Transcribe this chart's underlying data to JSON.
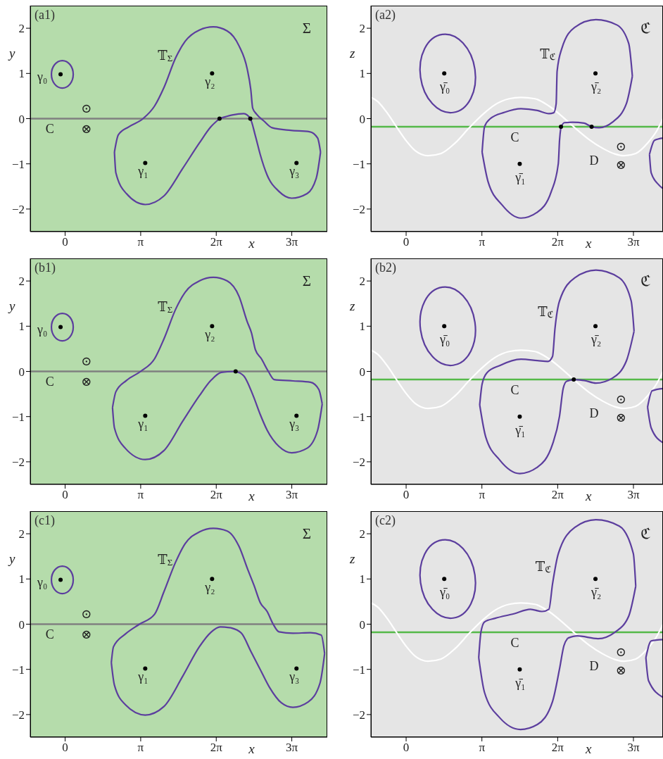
{
  "chart_data": [
    {
      "type": "line",
      "title": "(a1)",
      "xlabel": "x",
      "ylabel": "y",
      "xlim": [
        -1.45,
        10.9
      ],
      "ylim": [
        -2.5,
        2.5
      ],
      "xticks": [
        {
          "value": 0,
          "label": "0"
        },
        {
          "value": 3.1416,
          "label": "π"
        },
        {
          "value": 6.2832,
          "label": "2π"
        },
        {
          "value": 9.4248,
          "label": "3π"
        }
      ],
      "yticks": [
        -2,
        -1,
        0,
        1,
        2
      ],
      "grid": false,
      "marker": "none",
      "series": [
        {
          "color": "#5c3e9e",
          "x": [
            6.42,
            6.94,
            7.43,
            7.7,
            7.91,
            8.11,
            8.4,
            8.89,
            9.42,
            10.06,
            10.45,
            10.62
          ],
          "values": [
            0.0,
            0.08,
            0.11,
            0.0,
            -0.38,
            -0.79,
            -1.25,
            -1.61,
            -1.76,
            -1.66,
            -1.3,
            -0.74
          ]
        },
        {
          "color": "#5c3e9e",
          "x": [
            2.05,
            2.21,
            2.65,
            3.24,
            3.72,
            4.11,
            4.6,
            4.99,
            5.58,
            6.16,
            6.74,
            7.23,
            7.57,
            7.72,
            7.8,
            7.96,
            8.26,
            8.6,
            9.38,
            10.16,
            10.5,
            10.62
          ],
          "values": [
            -0.74,
            -0.36,
            -0.18,
            0.0,
            0.28,
            0.69,
            1.35,
            1.71,
            1.96,
            2.03,
            1.94,
            1.61,
            1.1,
            0.64,
            0.23,
            0.1,
            -0.05,
            -0.2,
            -0.26,
            -0.29,
            -0.43,
            -0.74
          ]
        },
        {
          "color": "#5c3e9e",
          "x": [
            2.05,
            2.11,
            2.55,
            3.33,
            4.11,
            4.89,
            5.58,
            6.06,
            6.42
          ],
          "values": [
            -0.74,
            -1.2,
            -1.66,
            -1.9,
            -1.71,
            -1.1,
            -0.54,
            -0.18,
            0.0
          ]
        },
        {
          "type": "scatter",
          "marker": "circle",
          "color": "#000000",
          "x": [
            -0.19,
            3.33,
            6.11,
            9.62
          ],
          "values": [
            0.98,
            -0.98,
            1.0,
            -0.98
          ]
        },
        {
          "type": "scatter",
          "marker": "circle",
          "color": "#000000",
          "x": [
            6.42,
            7.7
          ],
          "values": [
            0.0,
            0.0
          ]
        }
      ],
      "ref_lines": [
        {
          "axis": "y",
          "value": 0,
          "color": "#808080"
        }
      ],
      "annotations": [
        "Σ",
        "⊙",
        "⊗",
        {
          "text": "𝕋$_{Σ}$",
          "x": 4.6,
          "y": 1.35
        },
        {
          "text": "γ₀",
          "x": -0.19,
          "y": 0.98
        },
        {
          "text": "γ₁",
          "x": 3.33,
          "y": -0.98
        },
        {
          "text": "γ₂",
          "x": 6.11,
          "y": 1.0
        },
        {
          "text": "γ₃",
          "x": 9.62,
          "y": -0.98
        },
        {
          "text": "C",
          "x": -0.64,
          "y": 0
        }
      ]
    },
    {
      "type": "line",
      "title": "(a2)",
      "xlabel": "x",
      "ylabel": "z",
      "xlim": [
        -1.46,
        10.65
      ],
      "ylim": [
        -2.5,
        2.5
      ],
      "xticks": [
        {
          "value": 0,
          "label": "0"
        },
        {
          "value": 3.1416,
          "label": "π"
        },
        {
          "value": 6.2832,
          "label": "2π"
        },
        {
          "value": 9.4248,
          "label": "3π"
        }
      ],
      "yticks": [
        -2,
        -1,
        0,
        1,
        2
      ],
      "grid": false,
      "marker": "none",
      "series": [
        {
          "color": "#ffffff",
          "x": [
            -1.46,
            -1.18,
            -0.79,
            -0.4,
            -0.01,
            0.38,
            0.91,
            1.45,
            2.03,
            2.62,
            3.19,
            3.69,
            4.27,
            4.76,
            5.34,
            5.92,
            6.51,
            6.99,
            7.58,
            8.16,
            8.65,
            9.04,
            9.52,
            10.01,
            10.4,
            10.65
          ],
          "values": [
            0.47,
            0.38,
            0.13,
            -0.18,
            -0.48,
            -0.71,
            -0.82,
            -0.77,
            -0.54,
            -0.2,
            0.1,
            0.31,
            0.44,
            0.47,
            0.44,
            0.28,
            0.03,
            -0.2,
            -0.46,
            -0.66,
            -0.78,
            -0.82,
            -0.77,
            -0.54,
            -0.26,
            0.0
          ]
        },
        {
          "color": "#5c3e9e",
          "x": [
            6.42,
            6.56,
            6.9,
            7.38,
            7.69,
            8.0,
            8.55,
            9.13,
            9.38
          ],
          "values": [
            -0.18,
            -0.09,
            -0.08,
            -0.1,
            -0.18,
            -0.2,
            -0.08,
            0.33,
            0.94
          ]
        },
        {
          "color": "#5c3e9e",
          "x": [
            3.15,
            3.25,
            3.49,
            4.08,
            4.76,
            5.44,
            5.92,
            6.12,
            6.22,
            6.26,
            6.46,
            6.99,
            7.87,
            8.75,
            9.23,
            9.38
          ],
          "values": [
            -0.74,
            -0.18,
            0.0,
            0.14,
            0.22,
            0.18,
            0.11,
            0.13,
            0.33,
            1.05,
            1.56,
            2.02,
            2.19,
            2.07,
            1.66,
            0.94
          ]
        },
        {
          "color": "#5c3e9e",
          "x": [
            3.15,
            3.4,
            3.98,
            4.76,
            5.44,
            6.02,
            6.31,
            6.36,
            6.42
          ],
          "values": [
            -0.74,
            -1.4,
            -1.91,
            -2.2,
            -2.07,
            -1.61,
            -0.99,
            -0.48,
            -0.18
          ]
        },
        {
          "color": "#5c3e9e",
          "x": [
            10.09,
            10.3,
            10.65
          ],
          "values": [
            -0.79,
            -0.48,
            -0.43
          ]
        },
        {
          "color": "#5c3e9e",
          "x": [
            10.09,
            10.16,
            10.45,
            10.65
          ],
          "values": [
            -0.79,
            -1.2,
            -1.45,
            -1.55
          ]
        },
        {
          "type": "scatter",
          "marker": "circle",
          "color": "#000000",
          "x": [
            1.58,
            4.71,
            7.85
          ],
          "values": [
            1.0,
            -1.0,
            1.0
          ]
        },
        {
          "type": "scatter",
          "marker": "circle",
          "color": "#000000",
          "x": [
            6.42,
            7.69
          ],
          "values": [
            -0.18,
            -0.18
          ]
        }
      ],
      "ref_lines": [
        {
          "axis": "y",
          "value": -0.18,
          "color": "#55b949"
        }
      ],
      "annotations": [
        "ℭ",
        "D",
        "⊙",
        "⊗",
        {
          "text": "𝕋$_{ℭ}$",
          "x": 6.26,
          "y": 1.05
        },
        {
          "text": "γ̄₀",
          "x": 1.58,
          "y": 1.0
        },
        {
          "text": "γ̄₁",
          "x": 4.71,
          "y": -1.0
        },
        {
          "text": "γ̄₂",
          "x": 7.85,
          "y": 1.0
        },
        {
          "text": "C",
          "x": 4.51,
          "y": -0.18
        }
      ]
    },
    {
      "type": "line",
      "title": "(b1)",
      "xlabel": "x",
      "ylabel": "y",
      "xlim": [
        -1.45,
        10.9
      ],
      "ylim": [
        -2.5,
        2.5
      ],
      "xticks": [
        {
          "value": 0,
          "label": "0"
        },
        {
          "value": 3.1416,
          "label": "π"
        },
        {
          "value": 6.2832,
          "label": "2π"
        },
        {
          "value": 9.4248,
          "label": "3π"
        }
      ],
      "yticks": [
        -2,
        -1,
        0,
        1,
        2
      ],
      "grid": false,
      "marker": "none",
      "series": [
        {
          "color": "#5c3e9e",
          "x": [
            7.09,
            7.43,
            7.82,
            8.11,
            8.4,
            8.89,
            9.42,
            10.06,
            10.5,
            10.69
          ],
          "values": [
            0.0,
            -0.1,
            -0.54,
            -0.95,
            -1.3,
            -1.66,
            -1.8,
            -1.7,
            -1.3,
            -0.72
          ]
        },
        {
          "color": "#5c3e9e",
          "x": [
            1.97,
            2.11,
            2.55,
            3.14,
            3.72,
            4.11,
            4.6,
            4.99,
            5.58,
            6.16,
            6.74,
            7.23,
            7.57,
            7.75,
            7.91,
            8.16,
            8.45,
            8.69,
            9.47,
            10.2,
            10.55,
            10.69
          ],
          "values": [
            -0.8,
            -0.45,
            -0.2,
            0.0,
            0.28,
            0.72,
            1.38,
            1.75,
            2.0,
            2.08,
            2.0,
            1.66,
            1.1,
            0.85,
            0.48,
            0.28,
            0.0,
            -0.18,
            -0.21,
            -0.24,
            -0.4,
            -0.72
          ]
        },
        {
          "color": "#5c3e9e",
          "x": [
            1.97,
            2.05,
            2.5,
            3.33,
            4.11,
            4.89,
            5.58,
            6.06,
            6.5,
            7.09
          ],
          "values": [
            -0.8,
            -1.25,
            -1.7,
            -1.95,
            -1.75,
            -1.1,
            -0.54,
            -0.2,
            -0.02,
            0.0
          ]
        },
        {
          "type": "scatter",
          "marker": "circle",
          "color": "#000000",
          "x": [
            -0.19,
            3.33,
            6.11,
            9.62
          ],
          "values": [
            0.98,
            -0.98,
            1.0,
            -0.98
          ]
        },
        {
          "type": "scatter",
          "marker": "circle",
          "color": "#000000",
          "x": [
            7.09
          ],
          "values": [
            0.0
          ]
        }
      ],
      "ref_lines": [
        {
          "axis": "y",
          "value": 0,
          "color": "#808080"
        }
      ],
      "annotations": [
        "Σ",
        "⊙",
        "⊗",
        {
          "text": "𝕋$_{Σ}$",
          "x": 4.6,
          "y": 1.38
        },
        {
          "text": "γ₀",
          "x": -0.19,
          "y": 0.98
        },
        {
          "text": "γ₁",
          "x": 3.33,
          "y": -0.98
        },
        {
          "text": "γ₂",
          "x": 6.11,
          "y": 1.0
        },
        {
          "text": "γ₃",
          "x": 9.62,
          "y": -0.98
        },
        {
          "text": "C",
          "x": -0.64,
          "y": 0
        }
      ]
    },
    {
      "type": "line",
      "title": "(b2)",
      "xlabel": "x",
      "ylabel": "z",
      "xlim": [
        -1.46,
        10.65
      ],
      "ylim": [
        -2.5,
        2.5
      ],
      "xticks": [
        {
          "value": 0,
          "label": "0"
        },
        {
          "value": 3.1416,
          "label": "π"
        },
        {
          "value": 6.2832,
          "label": "2π"
        },
        {
          "value": 9.4248,
          "label": "3π"
        }
      ],
      "yticks": [
        -2,
        -1,
        0,
        1,
        2
      ],
      "grid": false,
      "marker": "none",
      "series": [
        {
          "color": "#ffffff",
          "x": [
            -1.46,
            -1.18,
            -0.79,
            -0.4,
            -0.01,
            0.38,
            0.91,
            1.45,
            2.03,
            2.62,
            3.19,
            3.69,
            4.27,
            4.76,
            5.34,
            5.92,
            6.51,
            6.99,
            7.58,
            8.16,
            8.65,
            9.04,
            9.52,
            10.01,
            10.4,
            10.65
          ],
          "values": [
            0.47,
            0.38,
            0.13,
            -0.18,
            -0.48,
            -0.71,
            -0.82,
            -0.77,
            -0.54,
            -0.2,
            0.1,
            0.31,
            0.44,
            0.47,
            0.44,
            0.28,
            0.03,
            -0.2,
            -0.46,
            -0.66,
            -0.78,
            -0.82,
            -0.77,
            -0.54,
            -0.26,
            0.0
          ]
        },
        {
          "color": "#5c3e9e",
          "x": [
            6.95,
            7.38,
            7.87,
            8.55,
            9.13,
            9.45
          ],
          "values": [
            -0.18,
            -0.2,
            -0.26,
            -0.15,
            0.23,
            0.89
          ]
        },
        {
          "color": "#5c3e9e",
          "x": [
            3.05,
            3.15,
            3.35,
            3.88,
            4.76,
            5.44,
            5.88,
            6.07,
            6.17,
            6.36,
            6.99,
            7.87,
            8.84,
            9.33,
            9.45
          ],
          "values": [
            -0.74,
            -0.28,
            -0.03,
            0.13,
            0.27,
            0.24,
            0.22,
            0.33,
            0.94,
            1.56,
            2.07,
            2.24,
            2.07,
            1.56,
            0.89
          ]
        },
        {
          "color": "#5c3e9e",
          "x": [
            3.05,
            3.3,
            3.88,
            4.71,
            5.44,
            6.07,
            6.36,
            6.51,
            6.65,
            6.95
          ],
          "values": [
            -0.74,
            -1.45,
            -1.96,
            -2.26,
            -2.12,
            -1.61,
            -0.99,
            -0.38,
            -0.22,
            -0.18
          ]
        },
        {
          "color": "#5c3e9e",
          "x": [
            10.01,
            10.2,
            10.65
          ],
          "values": [
            -0.79,
            -0.43,
            -0.38
          ]
        },
        {
          "color": "#5c3e9e",
          "x": [
            10.01,
            10.16,
            10.65
          ],
          "values": [
            -0.79,
            -1.25,
            -1.58
          ]
        },
        {
          "type": "scatter",
          "marker": "circle",
          "color": "#000000",
          "x": [
            1.58,
            4.71,
            7.85
          ],
          "values": [
            1.0,
            -1.0,
            1.0
          ]
        },
        {
          "type": "scatter",
          "marker": "circle",
          "color": "#000000",
          "x": [
            6.95
          ],
          "values": [
            -0.18
          ]
        }
      ],
      "ref_lines": [
        {
          "axis": "y",
          "value": -0.18,
          "color": "#55b949"
        }
      ],
      "annotations": [
        "ℭ",
        "D",
        "⊙",
        "⊗",
        {
          "text": "𝕋$_{ℭ}$",
          "x": 6.17,
          "y": 0.94
        },
        {
          "text": "γ̄₀",
          "x": 1.58,
          "y": 1.0
        },
        {
          "text": "γ̄₁",
          "x": 4.71,
          "y": -1.0
        },
        {
          "text": "γ̄₂",
          "x": 7.85,
          "y": 1.0
        },
        {
          "text": "C",
          "x": 4.51,
          "y": -0.18
        }
      ]
    },
    {
      "type": "line",
      "title": "(c1)",
      "xlabel": "x",
      "ylabel": "y",
      "xlim": [
        -1.45,
        10.9
      ],
      "ylim": [
        -2.5,
        2.5
      ],
      "xticks": [
        {
          "value": 0,
          "label": "0"
        },
        {
          "value": 3.1416,
          "label": "π"
        },
        {
          "value": 6.2832,
          "label": "2π"
        },
        {
          "value": 9.4248,
          "label": "3π"
        }
      ],
      "yticks": [
        -2,
        -1,
        0,
        1,
        2
      ],
      "grid": false,
      "marker": "none",
      "series": [
        {
          "color": "#5c3e9e",
          "x": [
            6.89,
            7.33,
            7.72,
            8.11,
            8.5,
            8.99,
            9.47,
            10.11,
            10.6,
            10.79
          ],
          "values": [
            -0.08,
            -0.2,
            -0.6,
            -1.0,
            -1.4,
            -1.74,
            -1.84,
            -1.72,
            -1.3,
            -0.65
          ]
        },
        {
          "color": "#5c3e9e",
          "x": [
            1.92,
            2.01,
            2.5,
            3.09,
            3.72,
            4.11,
            4.6,
            4.99,
            5.58,
            6.16,
            6.74,
            7.23,
            7.6,
            7.86,
            8.11,
            8.4,
            8.65,
            8.89,
            9.47,
            10.2,
            10.65,
            10.79
          ],
          "values": [
            -0.85,
            -0.5,
            -0.22,
            0.0,
            0.22,
            0.72,
            1.38,
            1.78,
            2.04,
            2.12,
            2.06,
            1.72,
            1.2,
            0.85,
            0.48,
            0.28,
            0.0,
            -0.17,
            -0.2,
            -0.19,
            -0.24,
            -0.65
          ]
        },
        {
          "color": "#5c3e9e",
          "x": [
            1.92,
            2.05,
            2.5,
            3.33,
            4.11,
            4.89,
            5.58,
            6.06,
            6.45,
            6.89
          ],
          "values": [
            -0.85,
            -1.35,
            -1.78,
            -2.01,
            -1.82,
            -1.15,
            -0.5,
            -0.18,
            -0.06,
            -0.08
          ]
        },
        {
          "type": "scatter",
          "marker": "circle",
          "color": "#000000",
          "x": [
            -0.19,
            3.33,
            6.11,
            9.62
          ],
          "values": [
            0.98,
            -0.98,
            1.0,
            -0.98
          ]
        }
      ],
      "ref_lines": [
        {
          "axis": "y",
          "value": 0,
          "color": "#808080"
        }
      ],
      "annotations": [
        "Σ",
        "⊙",
        "⊗",
        {
          "text": "𝕋$_{Σ}$",
          "x": 4.6,
          "y": 1.38
        },
        {
          "text": "γ₀",
          "x": -0.19,
          "y": 0.98
        },
        {
          "text": "γ₁",
          "x": 3.33,
          "y": -0.98
        },
        {
          "text": "γ₂",
          "x": 6.11,
          "y": 1.0
        },
        {
          "text": "γ₃",
          "x": 9.62,
          "y": -0.98
        },
        {
          "text": "C",
          "x": -0.64,
          "y": 0
        }
      ]
    },
    {
      "type": "line",
      "title": "(c2)",
      "xlabel": "x",
      "ylabel": "z",
      "xlim": [
        -1.46,
        10.65
      ],
      "ylim": [
        -2.5,
        2.5
      ],
      "xticks": [
        {
          "value": 0,
          "label": "0"
        },
        {
          "value": 3.1416,
          "label": "π"
        },
        {
          "value": 6.2832,
          "label": "2π"
        },
        {
          "value": 9.4248,
          "label": "3π"
        }
      ],
      "yticks": [
        -2,
        -1,
        0,
        1,
        2
      ],
      "grid": false,
      "marker": "none",
      "series": [
        {
          "color": "#ffffff",
          "x": [
            -1.46,
            -1.18,
            -0.79,
            -0.4,
            -0.01,
            0.38,
            0.91,
            1.45,
            2.03,
            2.62,
            3.19,
            3.69,
            4.27,
            4.76,
            5.34,
            5.92,
            6.51,
            6.99,
            7.58,
            8.16,
            8.65,
            9.04,
            9.52,
            10.01,
            10.4,
            10.65
          ],
          "values": [
            0.47,
            0.38,
            0.13,
            -0.18,
            -0.48,
            -0.71,
            -0.82,
            -0.77,
            -0.54,
            -0.2,
            0.1,
            0.31,
            0.44,
            0.47,
            0.44,
            0.28,
            0.03,
            -0.2,
            -0.46,
            -0.66,
            -0.78,
            -0.82,
            -0.77,
            -0.54,
            -0.26,
            0.0
          ]
        },
        {
          "color": "#5c3e9e",
          "x": [
            6.7,
            7.09,
            7.96,
            8.65,
            9.23,
            9.52
          ],
          "values": [
            -0.31,
            -0.26,
            -0.32,
            -0.18,
            0.18,
            0.84
          ]
        },
        {
          "color": "#5c3e9e",
          "x": [
            3.01,
            3.1,
            3.25,
            3.69,
            4.47,
            5.15,
            5.63,
            5.92,
            6.07,
            6.31,
            6.99,
            7.87,
            8.84,
            9.42,
            9.52
          ],
          "values": [
            -0.74,
            -0.18,
            0.05,
            0.13,
            0.23,
            0.33,
            0.28,
            0.33,
            0.89,
            1.56,
            2.14,
            2.31,
            2.17,
            1.56,
            0.84
          ]
        },
        {
          "color": "#5c3e9e",
          "x": [
            3.01,
            3.25,
            3.88,
            4.74,
            5.44,
            6.07,
            6.36,
            6.54,
            6.7
          ],
          "values": [
            -0.74,
            -1.51,
            -2.07,
            -2.33,
            -2.22,
            -1.71,
            -0.99,
            -0.48,
            -0.31
          ]
        },
        {
          "color": "#5c3e9e",
          "x": [
            9.94,
            10.16,
            10.65
          ],
          "values": [
            -0.74,
            -0.37,
            -0.34
          ]
        },
        {
          "color": "#5c3e9e",
          "x": [
            9.94,
            10.05,
            10.65
          ],
          "values": [
            -0.74,
            -1.25,
            -1.62
          ]
        },
        {
          "type": "scatter",
          "marker": "circle",
          "color": "#000000",
          "x": [
            1.58,
            4.71,
            7.85
          ],
          "values": [
            1.0,
            -1.0,
            1.0
          ]
        }
      ],
      "ref_lines": [
        {
          "axis": "y",
          "value": -0.18,
          "color": "#55b949"
        }
      ],
      "annotations": [
        "ℭ",
        "D",
        "⊙",
        "⊗",
        {
          "text": "𝕋$_{ℭ}$",
          "x": 6.07,
          "y": 0.89
        },
        {
          "text": "γ̄₀",
          "x": 1.58,
          "y": 1.0
        },
        {
          "text": "γ̄₁",
          "x": 4.71,
          "y": -1.0
        },
        {
          "text": "γ̄₂",
          "x": 7.85,
          "y": 1.0
        },
        {
          "text": "C",
          "x": 4.51,
          "y": -0.18
        }
      ]
    }
  ]
}
